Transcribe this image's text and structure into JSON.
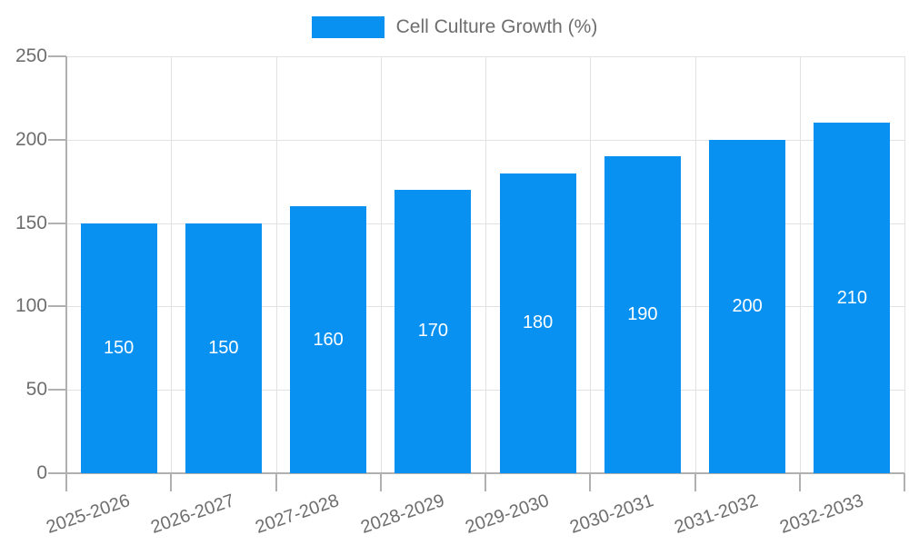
{
  "chart_data": {
    "type": "bar",
    "title": "",
    "legend": {
      "label": "Cell Culture Growth (%)",
      "position": "top"
    },
    "categories": [
      "2025-2026",
      "2026-2027",
      "2027-2028",
      "2028-2029",
      "2029-2030",
      "2030-2031",
      "2031-2032",
      "2032-2033"
    ],
    "series": [
      {
        "name": "Cell Culture Growth (%)",
        "values": [
          150,
          150,
          160,
          170,
          180,
          190,
          200,
          210
        ]
      }
    ],
    "value_labels": [
      "150",
      "150",
      "160",
      "170",
      "180",
      "190",
      "200",
      "210"
    ],
    "xlabel": "",
    "ylabel": "",
    "ylim": [
      0,
      250
    ],
    "yticks": [
      0,
      50,
      100,
      150,
      200,
      250
    ],
    "grid": true,
    "x_label_rotation_deg": -19,
    "colors": {
      "bar": "#0991f1",
      "grid": "#e2e2e2",
      "axis": "#b0b0b0",
      "text": "#6e6e6e",
      "value_text": "#ffffff",
      "background": "#ffffff"
    }
  }
}
